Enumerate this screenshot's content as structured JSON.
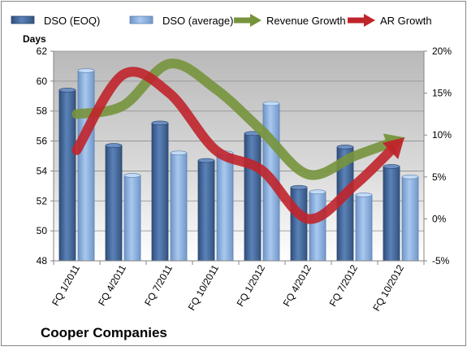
{
  "chart_data": {
    "type": "bar",
    "title": "Cooper Companies",
    "y_left_label": "Days",
    "ylim_left": [
      48,
      62
    ],
    "ylim_right": [
      -5,
      20
    ],
    "left_ticks": [
      "48",
      "50",
      "52",
      "54",
      "56",
      "58",
      "60",
      "62"
    ],
    "right_ticks": [
      "-5%",
      "0%",
      "5%",
      "10%",
      "15%",
      "20%"
    ],
    "categories": [
      "FQ 1/2011",
      "FQ 4/2011",
      "FQ 7/2011",
      "FQ 10/2011",
      "FQ 1/2012",
      "FQ 4/2012",
      "FQ 7/2012",
      "FQ 10/2012"
    ],
    "series": [
      {
        "name": "DSO (EOQ)",
        "kind": "bar",
        "axis": "left",
        "color": "#4a6fa5",
        "values": [
          59.4,
          55.7,
          57.2,
          54.7,
          56.5,
          52.9,
          55.6,
          54.3
        ]
      },
      {
        "name": "DSO (average)",
        "kind": "bar",
        "axis": "left",
        "color": "#8fb4e3",
        "values": [
          60.7,
          53.7,
          55.2,
          55.2,
          58.5,
          52.6,
          52.4,
          53.6
        ]
      },
      {
        "name": "Revenue Growth",
        "kind": "line",
        "axis": "right",
        "color": "#77933c",
        "values": [
          12.5,
          13.5,
          18.5,
          15.5,
          10.5,
          5.3,
          7.5,
          9.5
        ]
      },
      {
        "name": "AR Growth",
        "kind": "line",
        "axis": "right",
        "color": "#c0242b",
        "values": [
          8.2,
          17.2,
          15.0,
          8.2,
          5.8,
          0.0,
          4.0,
          9.3
        ]
      }
    ],
    "legend": [
      {
        "label": "DSO (EOQ)",
        "kind": "bar",
        "color": "#4a6fa5"
      },
      {
        "label": "DSO (average)",
        "kind": "bar",
        "color": "#8fb4e3"
      },
      {
        "label": "Revenue Growth",
        "kind": "arrow",
        "color": "#77933c"
      },
      {
        "label": "AR Growth",
        "kind": "arrow",
        "color": "#c0242b"
      }
    ],
    "legend_position": "top",
    "grid": true
  }
}
